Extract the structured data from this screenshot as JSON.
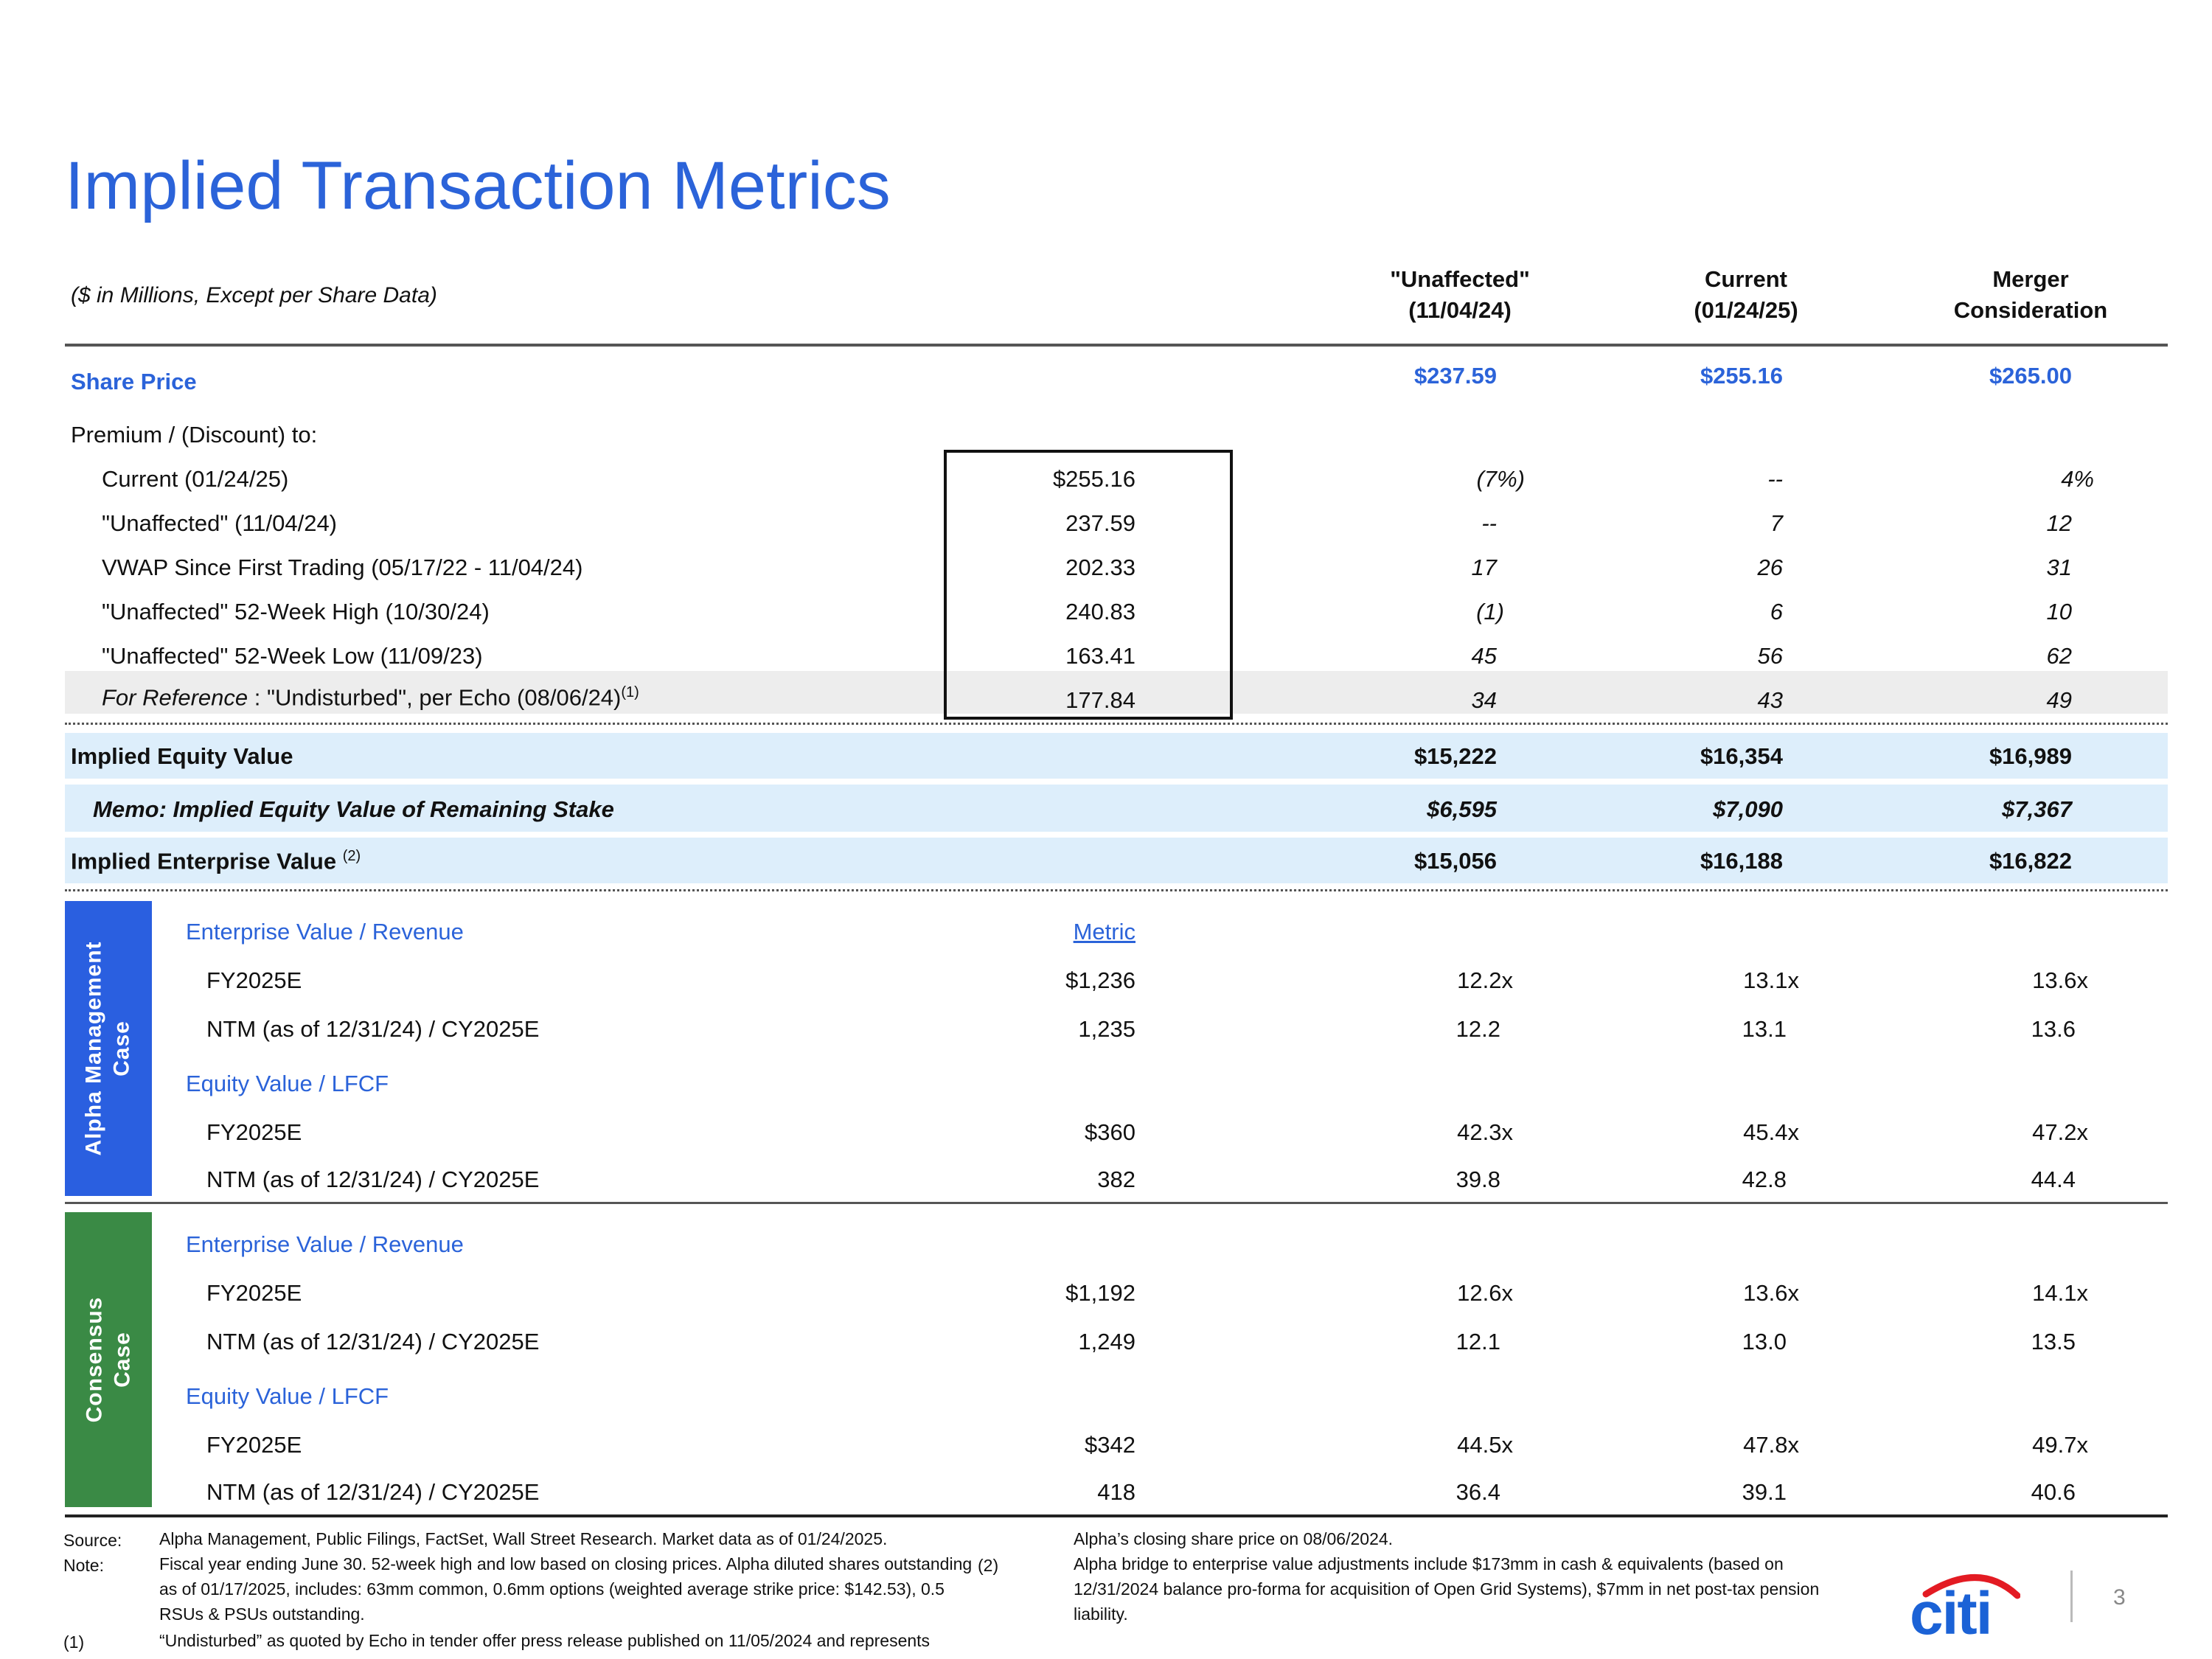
{
  "title": "Implied Transaction Metrics",
  "units_note": "($ in Millions, Except per Share Data)",
  "columns": [
    {
      "line1": "\"Unaffected\"",
      "line2": "(11/04/24)"
    },
    {
      "line1": "Current",
      "line2": "(01/24/25)"
    },
    {
      "line1": "Merger",
      "line2": "Consideration"
    }
  ],
  "share_price": {
    "label": "Share Price",
    "values": [
      "$237.59",
      "$255.16",
      "$265.00"
    ]
  },
  "premium_label": "Premium / (Discount) to:",
  "premium_rows": [
    {
      "label": "Current (01/24/25)",
      "ref": "$255.16",
      "values": [
        "(7%)",
        "--",
        "4%"
      ]
    },
    {
      "label": "\"Unaffected\" (11/04/24)",
      "ref": "237.59",
      "values": [
        "--",
        "7",
        "12"
      ]
    },
    {
      "label": "VWAP Since First Trading (05/17/22 - 11/04/24)",
      "ref": "202.33",
      "values": [
        "17",
        "26",
        "31"
      ]
    },
    {
      "label": "\"Unaffected\" 52-Week High (10/30/24)",
      "ref": "240.83",
      "values": [
        "(1)",
        "6",
        "10"
      ]
    },
    {
      "label": "\"Unaffected\" 52-Week Low (11/09/23)",
      "ref": "163.41",
      "values": [
        "45",
        "56",
        "62"
      ]
    },
    {
      "label_prefix": "For Reference",
      "label": " :  \"Undisturbed\", per Echo (08/06/24)",
      "sup": "(1)",
      "ref": "177.84",
      "values": [
        "34",
        "43",
        "49"
      ]
    }
  ],
  "equity": {
    "label": "Implied Equity Value",
    "values": [
      "$15,222",
      "$16,354",
      "$16,989"
    ]
  },
  "memo": {
    "label": "Memo: Implied Equity Value of Remaining Stake",
    "values": [
      "$6,595",
      "$7,090",
      "$7,367"
    ]
  },
  "ev": {
    "label": "Implied Enterprise Value",
    "sup": "(2)",
    "values": [
      "$15,056",
      "$16,188",
      "$16,822"
    ]
  },
  "alpha": {
    "sidebar_line1": "Alpha Management",
    "sidebar_line2": "Case",
    "sidebar_color": "#2A5FE0",
    "metric_header": "Metric",
    "ev_rev_label": "Enterprise Value / Revenue",
    "ev_rev_rows": [
      {
        "label": "FY2025E",
        "metric": "$1,236",
        "values": [
          "12.2x",
          "13.1x",
          "13.6x"
        ]
      },
      {
        "label": "NTM (as of 12/31/24) / CY2025E",
        "metric": "1,235",
        "values": [
          "12.2",
          "13.1",
          "13.6"
        ]
      }
    ],
    "eq_lfcf_label": "Equity Value / LFCF",
    "eq_lfcf_rows": [
      {
        "label": "FY2025E",
        "metric": "$360",
        "values": [
          "42.3x",
          "45.4x",
          "47.2x"
        ]
      },
      {
        "label": "NTM (as of 12/31/24) / CY2025E",
        "metric": "382",
        "values": [
          "39.8",
          "42.8",
          "44.4"
        ]
      }
    ]
  },
  "consensus": {
    "sidebar_line1": "Consensus",
    "sidebar_line2": "Case",
    "sidebar_color": "#3A8A45",
    "ev_rev_label": "Enterprise Value / Revenue",
    "ev_rev_rows": [
      {
        "label": "FY2025E",
        "metric": "$1,192",
        "values": [
          "12.6x",
          "13.6x",
          "14.1x"
        ]
      },
      {
        "label": "NTM (as of 12/31/24) / CY2025E",
        "metric": "1,249",
        "values": [
          "12.1",
          "13.0",
          "13.5"
        ]
      }
    ],
    "eq_lfcf_label": "Equity Value / LFCF",
    "eq_lfcf_rows": [
      {
        "label": "FY2025E",
        "metric": "$342",
        "values": [
          "44.5x",
          "47.8x",
          "49.7x"
        ]
      },
      {
        "label": "NTM (as of 12/31/24) / CY2025E",
        "metric": "418",
        "values": [
          "36.4",
          "39.1",
          "40.6"
        ]
      }
    ]
  },
  "footnotes": {
    "source_label": "Source:",
    "source_text": "Alpha Management, Public Filings, FactSet, Wall Street Research. Market data as of 01/24/2025.",
    "note_label": "Note:",
    "note_text": "Fiscal year ending June 30. 52-week high and low based on closing prices. Alpha diluted shares outstanding as of 01/17/2025, includes: 63mm common, 0.6mm options (weighted average strike price: $142.53), 0.5 RSUs & PSUs  outstanding.",
    "fn1_label": "(1)",
    "fn1_text": "“Undisturbed” as quoted by Echo in tender offer press release published on 11/05/2024  and represents",
    "fn1_cont": "Alpha’s closing share price on 08/06/2024.",
    "fn2_label": "(2)",
    "fn2_text": "Alpha bridge to enterprise value adjustments include $173mm in cash & equivalents (based on 12/31/2024 balance pro-forma for acquisition of Open Grid Systems), $7mm in net post-tax pension liability."
  },
  "logo_text": "citi",
  "page_number": "3"
}
